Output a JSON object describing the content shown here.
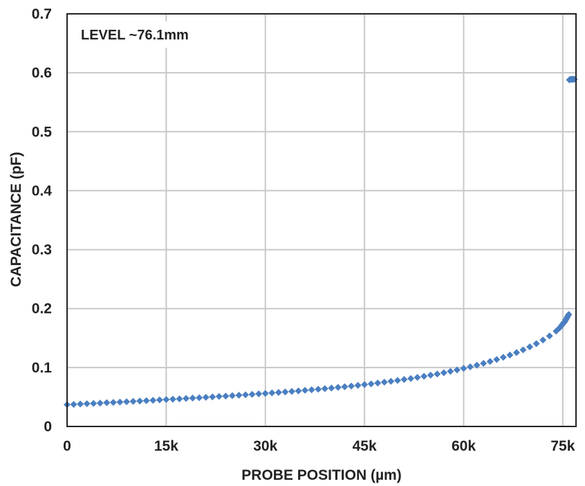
{
  "chart_data": {
    "type": "scatter",
    "annotation": "LEVEL ~76.1mm",
    "xlabel": "PROBE POSITION (µm)",
    "ylabel": "CAPACITANCE (pF)",
    "xlim": [
      0,
      77000
    ],
    "ylim": [
      0,
      0.7
    ],
    "x_ticks": [
      0,
      15000,
      30000,
      45000,
      60000,
      75000
    ],
    "x_tick_labels": [
      "0",
      "15k",
      "30k",
      "45k",
      "60k",
      "75k"
    ],
    "y_ticks": [
      0,
      0.1,
      0.2,
      0.3,
      0.4,
      0.5,
      0.6,
      0.7
    ],
    "y_tick_labels": [
      "0",
      "0.1",
      "0.2",
      "0.3",
      "0.4",
      "0.5",
      "0.6",
      "0.7"
    ],
    "grid": true,
    "marker": "diamond",
    "colors": {
      "series": "#4a7fc1",
      "grid": "#c8c8c8",
      "frame": "#222222"
    },
    "series": [
      {
        "points": [
          [
            0,
            0.037
          ],
          [
            1000,
            0.0375
          ],
          [
            2000,
            0.038
          ],
          [
            3000,
            0.0386
          ],
          [
            4000,
            0.0391
          ],
          [
            5000,
            0.0397
          ],
          [
            6000,
            0.0403
          ],
          [
            7000,
            0.0408
          ],
          [
            8000,
            0.0414
          ],
          [
            9000,
            0.042
          ],
          [
            10000,
            0.0426
          ],
          [
            11000,
            0.0432
          ],
          [
            12000,
            0.0438
          ],
          [
            13000,
            0.0444
          ],
          [
            14000,
            0.045
          ],
          [
            15000,
            0.0456
          ],
          [
            16000,
            0.0462
          ],
          [
            17000,
            0.0469
          ],
          [
            18000,
            0.0475
          ],
          [
            19000,
            0.0482
          ],
          [
            20000,
            0.0488
          ],
          [
            21000,
            0.0495
          ],
          [
            22000,
            0.0502
          ],
          [
            23000,
            0.0509
          ],
          [
            24000,
            0.0516
          ],
          [
            25000,
            0.0523
          ],
          [
            26000,
            0.053
          ],
          [
            27000,
            0.0538
          ],
          [
            28000,
            0.0545
          ],
          [
            29000,
            0.0553
          ],
          [
            30000,
            0.0561
          ],
          [
            31000,
            0.0569
          ],
          [
            32000,
            0.0577
          ],
          [
            33000,
            0.0586
          ],
          [
            34000,
            0.0595
          ],
          [
            35000,
            0.0604
          ],
          [
            36000,
            0.0613
          ],
          [
            37000,
            0.0622
          ],
          [
            38000,
            0.0632
          ],
          [
            39000,
            0.0642
          ],
          [
            40000,
            0.0652
          ],
          [
            41000,
            0.0663
          ],
          [
            42000,
            0.0674
          ],
          [
            43000,
            0.0686
          ],
          [
            44000,
            0.0698
          ],
          [
            45000,
            0.071
          ],
          [
            46000,
            0.0723
          ],
          [
            47000,
            0.0737
          ],
          [
            48000,
            0.0751
          ],
          [
            49000,
            0.0766
          ],
          [
            50000,
            0.0781
          ],
          [
            51000,
            0.0797
          ],
          [
            52000,
            0.0814
          ],
          [
            53000,
            0.0832
          ],
          [
            54000,
            0.0851
          ],
          [
            55000,
            0.087
          ],
          [
            56000,
            0.089
          ],
          [
            57000,
            0.0912
          ],
          [
            58000,
            0.0935
          ],
          [
            59000,
            0.0959
          ],
          [
            60000,
            0.0985
          ],
          [
            61000,
            0.1012
          ],
          [
            62000,
            0.104
          ],
          [
            63000,
            0.107
          ],
          [
            64000,
            0.1102
          ],
          [
            65000,
            0.1137
          ],
          [
            66000,
            0.1173
          ],
          [
            67000,
            0.1212
          ],
          [
            68000,
            0.1254
          ],
          [
            69000,
            0.13
          ],
          [
            70000,
            0.135
          ],
          [
            71000,
            0.1405
          ],
          [
            72000,
            0.1466
          ],
          [
            73000,
            0.1536
          ],
          [
            74000,
            0.1618
          ],
          [
            74500,
            0.167
          ],
          [
            74800,
            0.171
          ],
          [
            75000,
            0.174
          ],
          [
            75150,
            0.176
          ],
          [
            75300,
            0.178
          ],
          [
            75450,
            0.181
          ],
          [
            75600,
            0.184
          ],
          [
            75750,
            0.187
          ],
          [
            75900,
            0.19
          ],
          [
            76000,
            0.588
          ],
          [
            76150,
            0.589
          ],
          [
            76300,
            0.589
          ],
          [
            76450,
            0.589
          ],
          [
            76600,
            0.589
          ],
          [
            76750,
            0.589
          ]
        ]
      }
    ]
  }
}
